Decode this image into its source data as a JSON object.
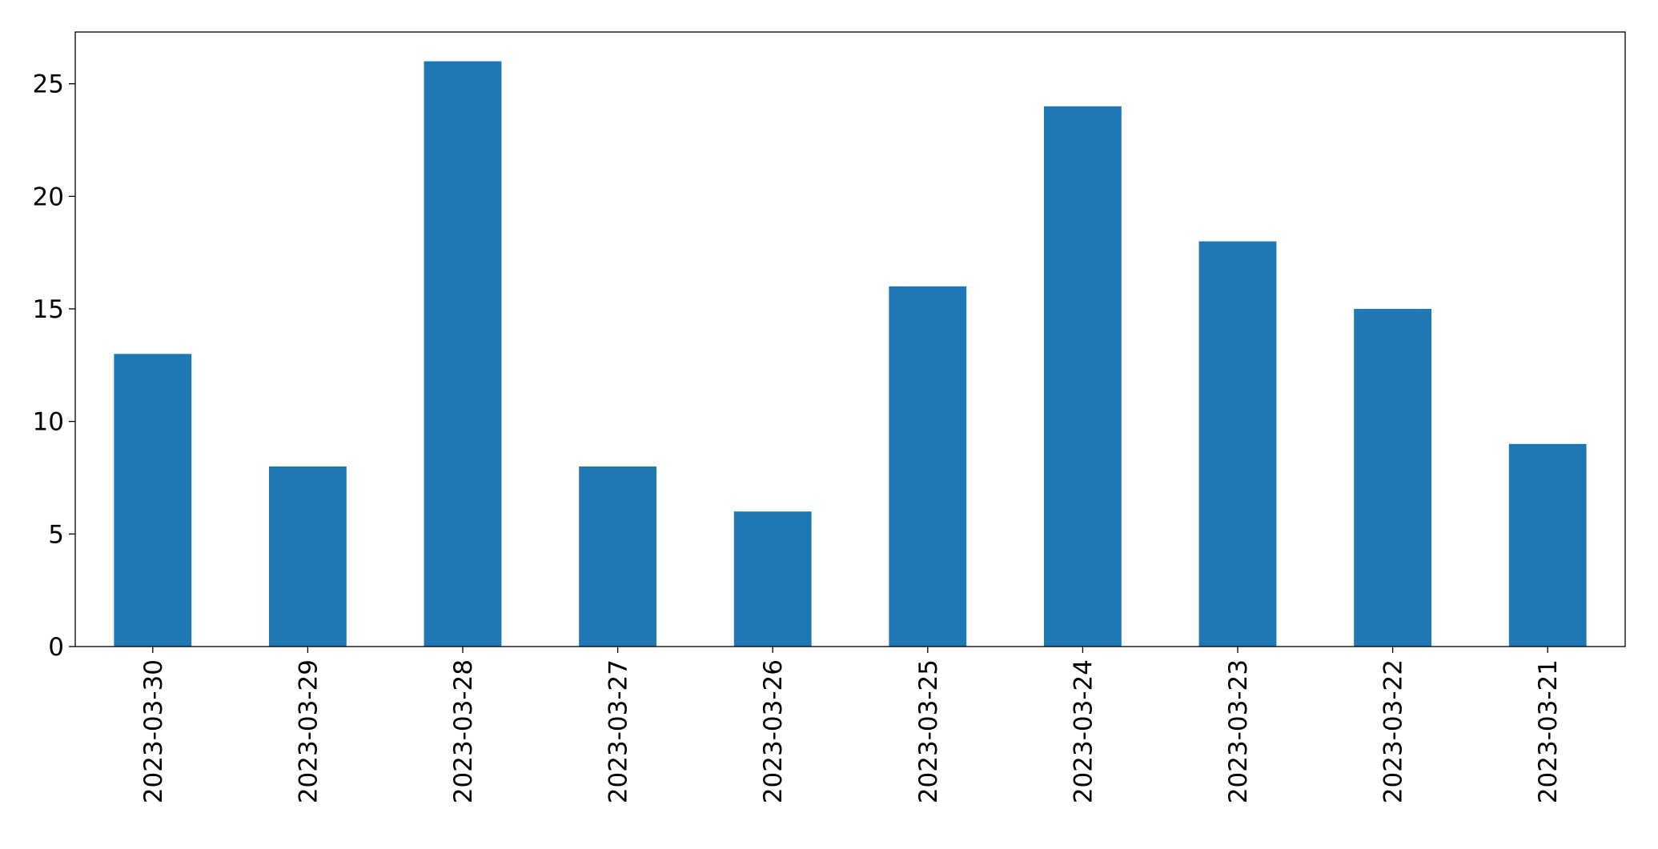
{
  "chart_data": {
    "type": "bar",
    "categories": [
      "2023-03-30",
      "2023-03-29",
      "2023-03-28",
      "2023-03-27",
      "2023-03-26",
      "2023-03-25",
      "2023-03-24",
      "2023-03-23",
      "2023-03-22",
      "2023-03-21"
    ],
    "values": [
      13,
      8,
      26,
      8,
      6,
      16,
      24,
      18,
      15,
      9
    ],
    "color": "#1f77b4",
    "ylim": [
      0,
      27.3
    ],
    "yticks": [
      0,
      5,
      10,
      15,
      20,
      25
    ],
    "grid": false
  }
}
